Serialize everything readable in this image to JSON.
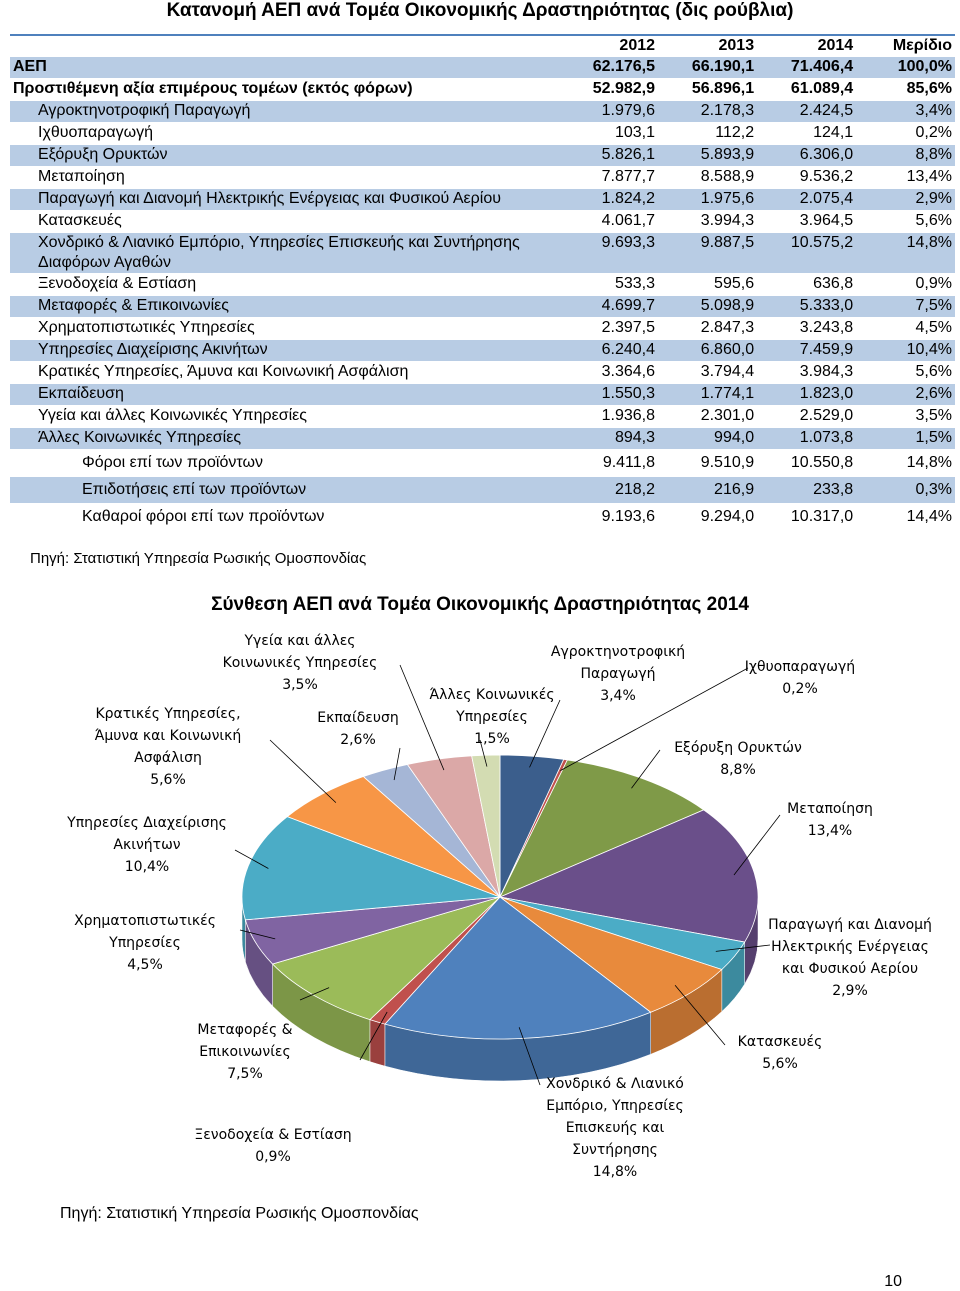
{
  "title": "Κατανομή ΑΕΠ ανά Τομέα Οικονομικής Δραστηριότητας (δις ρούβλια)",
  "table": {
    "header": [
      "2012",
      "2013",
      "2014",
      "Μερίδιο"
    ],
    "rows": [
      [
        "ΑΕΠ",
        "62.176,5",
        "66.190,1",
        "71.406,4",
        "100,0%"
      ],
      [
        "Προστιθέμενη αξία επιμέρους τομέων (εκτός φόρων)",
        "52.982,9",
        "56.896,1",
        "61.089,4",
        "85,6%"
      ],
      [
        "Αγροκτηνοτροφική Παραγωγή",
        "1.979,6",
        "2.178,3",
        "2.424,5",
        "3,4%"
      ],
      [
        "Ιχθυοπαραγωγή",
        "103,1",
        "112,2",
        "124,1",
        "0,2%"
      ],
      [
        "Εξόρυξη Ορυκτών",
        "5.826,1",
        "5.893,9",
        "6.306,0",
        "8,8%"
      ],
      [
        "Μεταποίηση",
        "7.877,7",
        "8.588,9",
        "9.536,2",
        "13,4%"
      ],
      [
        "Παραγωγή και Διανομή Ηλεκτρικής Ενέργειας και Φυσικού Αερίου",
        "1.824,2",
        "1.975,6",
        "2.075,4",
        "2,9%"
      ],
      [
        "Κατασκευές",
        "4.061,7",
        "3.994,3",
        "3.964,5",
        "5,6%"
      ],
      [
        "Χονδρικό & Λιανικό Εμπόριο, Υπηρεσίες Επισκευής και Συντήρησης Διαφόρων Αγαθών",
        "9.693,3",
        "9.887,5",
        "10.575,2",
        "14,8%"
      ],
      [
        "Ξενοδοχεία & Εστίαση",
        "533,3",
        "595,6",
        "636,8",
        "0,9%"
      ],
      [
        "Μεταφορές & Επικοινωνίες",
        "4.699,7",
        "5.098,9",
        "5.333,0",
        "7,5%"
      ],
      [
        "Χρηματοπιστωτικές Υπηρεσίες",
        "2.397,5",
        "2.847,3",
        "3.243,8",
        "4,5%"
      ],
      [
        "Υπηρεσίες Διαχείρισης Ακινήτων",
        "6.240,4",
        "6.860,0",
        "7.459,9",
        "10,4%"
      ],
      [
        "Κρατικές Υπηρεσίες, Άμυνα και Κοινωνική Ασφάλιση",
        "3.364,6",
        "3.794,4",
        "3.984,3",
        "5,6%"
      ],
      [
        "Εκπαίδευση",
        "1.550,3",
        "1.774,1",
        "1.823,0",
        "2,6%"
      ],
      [
        "Υγεία και άλλες Κοινωνικές Υπηρεσίες",
        "1.936,8",
        "2.301,0",
        "2.529,0",
        "3,5%"
      ],
      [
        "Άλλες Κοινωνικές Υπηρεσίες",
        "894,3",
        "994,0",
        "1.073,8",
        "1,5%"
      ],
      [
        "Φόροι επί των προϊόντων",
        "9.411,8",
        "9.510,9",
        "10.550,8",
        "14,8%"
      ],
      [
        "Επιδοτήσεις επί των προϊόντων",
        "218,2",
        "216,9",
        "233,8",
        "0,3%"
      ],
      [
        "Καθαροί φόροι επί των προϊόντων",
        "9.193,6",
        "9.294,0",
        "10.317,0",
        "14,4%"
      ]
    ]
  },
  "source": "Πηγή: Στατιστική Υπηρεσία Ρωσικής Ομοσπονδίας",
  "chart_data": {
    "type": "pie",
    "title": "Σύνθεση ΑΕΠ ανά Τομέα Οικονομικής Δραστηριότητας 2014",
    "categories": [
      "Αγροκτηνοτροφική Παραγωγή",
      "Ιχθυοπαραγωγή",
      "Εξόρυξη Ορυκτών",
      "Μεταποίηση",
      "Παραγωγή και Διανομή Ηλεκτρικής Ενέργειας και Φυσικού Αερίου",
      "Κατασκευές",
      "Χονδρικό & Λιανικό Εμπόριο, Υπηρεσίες Επισκευής και Συντήρησης",
      "Ξενοδοχεία & Εστίαση",
      "Μεταφορές & Επικοινωνίες",
      "Χρηματοπιστωτικές Υπηρεσίες",
      "Υπηρεσίες Διαχείρισης Ακινήτων",
      "Κρατικές Υπηρεσίες, Άμυνα και Κοινωνική Ασφάλιση",
      "Εκπαίδευση",
      "Υγεία και άλλες Κοινωνικές Υπηρεσίες",
      "Άλλες Κοινωνικές Υπηρεσίες"
    ],
    "values": [
      3.4,
      0.2,
      8.8,
      13.4,
      2.9,
      5.6,
      14.8,
      0.9,
      7.5,
      4.5,
      10.4,
      5.6,
      2.6,
      3.5,
      1.5
    ],
    "value_labels": [
      "3,4%",
      "0,2%",
      "8,8%",
      "13,4%",
      "2,9%",
      "5,6%",
      "14,8%",
      "0,9%",
      "7,5%",
      "4,5%",
      "10,4%",
      "5,6%",
      "2,6%",
      "3,5%",
      "1,5%"
    ],
    "colors": [
      "#3b5e8c",
      "#c0504d",
      "#7f9a48",
      "#6a4f8a",
      "#4bacc6",
      "#e88a3c",
      "#4f81bd",
      "#c0504d",
      "#9bbb59",
      "#8064a2",
      "#4bacc6",
      "#f79646",
      "#a5b6d6",
      "#dba8a7",
      "#d3dcb2"
    ]
  },
  "source2": "Πηγή: Στατιστική Υπηρεσία Ρωσικής Ομοσπονδίας",
  "page_number": "10"
}
